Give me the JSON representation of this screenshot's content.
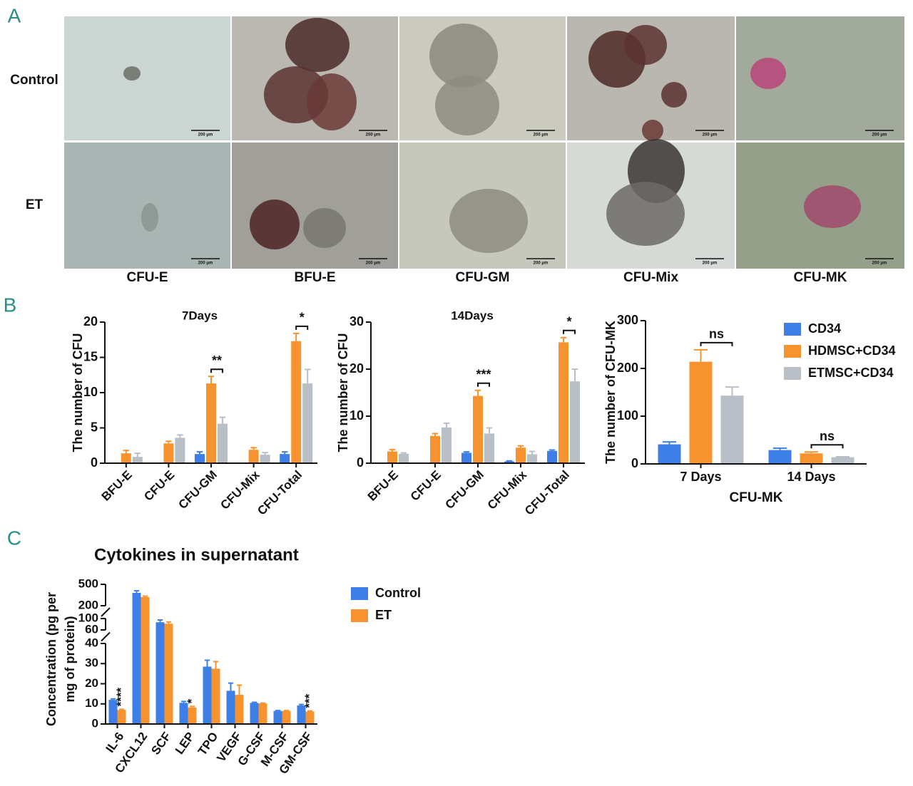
{
  "panel_labels": [
    "A",
    "B",
    "C"
  ],
  "panel_a": {
    "rows": [
      "Control",
      "ET"
    ],
    "columns": [
      "CFU-E",
      "BFU-E",
      "CFU-GM",
      "CFU-Mix",
      "CFU-MK"
    ],
    "scale_label": "200 μm"
  },
  "chart_data": [
    {
      "type": "bar",
      "title": "7Days",
      "ylabel": "The number of CFU",
      "categories": [
        "BFU-E",
        "CFU-E",
        "CFU-GM",
        "CFU-Mix",
        "CFU-Total"
      ],
      "series": [
        {
          "color": "#3d7fe6",
          "values": [
            0,
            0,
            1.3,
            0,
            1.3
          ],
          "errors": [
            0,
            0,
            0.3,
            0,
            0.3
          ]
        },
        {
          "color": "#f7932f",
          "values": [
            1.4,
            2.8,
            11.3,
            1.9,
            17.3
          ],
          "errors": [
            0.4,
            0.3,
            1.0,
            0.3,
            1.1
          ]
        },
        {
          "color": "#b8bfc6",
          "values": [
            0.9,
            3.6,
            5.6,
            1.2,
            11.3
          ],
          "errors": [
            0.5,
            0.4,
            0.9,
            0.3,
            2.0
          ]
        }
      ],
      "ylim": [
        0,
        20
      ],
      "yticks": [
        0,
        5,
        10,
        15,
        20
      ],
      "annotations": [
        {
          "category": "CFU-GM",
          "text": "**"
        },
        {
          "category": "CFU-Total",
          "text": "*"
        }
      ]
    },
    {
      "type": "bar",
      "title": "14Days",
      "ylabel": "The number of CFU",
      "categories": [
        "BFU-E",
        "CFU-E",
        "CFU-GM",
        "CFU-Mix",
        "CFU-Total"
      ],
      "series": [
        {
          "color": "#3d7fe6",
          "values": [
            0,
            0,
            2.2,
            0.4,
            2.6
          ],
          "errors": [
            0,
            0,
            0.2,
            0.1,
            0.2
          ]
        },
        {
          "color": "#f7932f",
          "values": [
            2.5,
            5.8,
            14.3,
            3.3,
            25.7
          ],
          "errors": [
            0.4,
            0.5,
            1.2,
            0.4,
            1.0
          ]
        },
        {
          "color": "#b8bfc6",
          "values": [
            2.0,
            7.6,
            6.3,
            1.9,
            17.4
          ],
          "errors": [
            0.2,
            0.9,
            1.2,
            0.6,
            2.6
          ]
        }
      ],
      "ylim": [
        0,
        30
      ],
      "yticks": [
        0,
        10,
        20,
        30
      ],
      "annotations": [
        {
          "category": "CFU-GM",
          "text": "***"
        },
        {
          "category": "CFU-Total",
          "text": "*"
        }
      ]
    },
    {
      "type": "bar",
      "xlabel": "CFU-MK",
      "ylabel": "The number of CFU-MK",
      "categories": [
        "7 Days",
        "14 Days"
      ],
      "series": [
        {
          "name": "CD34",
          "color": "#3d7fe6",
          "values": [
            41,
            29
          ],
          "errors": [
            5,
            4
          ]
        },
        {
          "name": "HDMSC+CD34",
          "color": "#f7932f",
          "values": [
            214,
            22
          ],
          "errors": [
            25,
            3
          ]
        },
        {
          "name": "ETMSC+CD34",
          "color": "#b8bfc6",
          "values": [
            143,
            14
          ],
          "errors": [
            18,
            1
          ]
        }
      ],
      "ylim": [
        0,
        300
      ],
      "yticks": [
        0,
        100,
        200,
        300
      ],
      "legend": "upper right",
      "annotations": [
        {
          "category": "7 Days",
          "text": "ns"
        },
        {
          "category": "14 Days",
          "text": "ns"
        }
      ]
    },
    {
      "type": "broken-bar",
      "title": "Cytokines in supernatant",
      "ylabel": [
        "Concentration (pg per",
        "mg of protein)"
      ],
      "categories": [
        "IL-6",
        "CXCL12",
        "SCF",
        "LEP",
        "TPO",
        "VEGF",
        "G-CSF",
        "M-CSF",
        "GM-CSF"
      ],
      "series": [
        {
          "name": "Control",
          "color": "#3d7fe6",
          "values": [
            12,
            380,
            87,
            10.5,
            28.5,
            16.5,
            10.5,
            6.5,
            9.2
          ],
          "errors": [
            0.5,
            30,
            8,
            0.7,
            3.2,
            3.8,
            0.3,
            0.2,
            0.5
          ]
        },
        {
          "name": "ET",
          "color": "#f7932f",
          "values": [
            7,
            320,
            82,
            8.2,
            27.5,
            14.5,
            10.2,
            6.5,
            6.2
          ],
          "errors": [
            0.3,
            15,
            6,
            0.5,
            3.5,
            4.8,
            0.2,
            0.2,
            0.3
          ]
        }
      ],
      "y_segments": [
        {
          "ylim": [
            0,
            40
          ],
          "yticks": [
            0,
            10,
            20,
            30,
            40
          ]
        },
        {
          "ylim": [
            60,
            100
          ],
          "yticks": [
            60,
            100
          ]
        },
        {
          "ylim": [
            200,
            500
          ],
          "yticks": [
            200,
            500
          ]
        }
      ],
      "legend": "right",
      "annotations": [
        {
          "category": "IL-6",
          "text": "****"
        },
        {
          "category": "LEP",
          "text": "*"
        },
        {
          "category": "GM-CSF",
          "text": "***"
        }
      ]
    }
  ]
}
